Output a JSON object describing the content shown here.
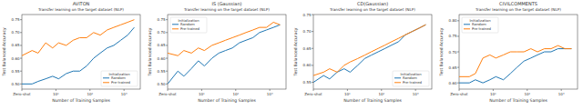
{
  "chart_data": [
    {
      "type": "line",
      "title": "AVITON",
      "subtitle": "Transfer learning on the target dataset (NLP)",
      "x_label": "Number of Training Samples",
      "y_label": "Test Balanced Accuracy",
      "legend_title": "Initialization",
      "log": "x",
      "grid": false,
      "legend": "lower right",
      "xlim": [
        1,
        3000
      ],
      "xticks": [
        {
          "value": 1,
          "label": "Zero-shot"
        },
        {
          "value": 10,
          "label": "10¹"
        },
        {
          "value": 100,
          "label": "10²"
        },
        {
          "value": 1000,
          "label": "10³"
        }
      ],
      "ylim": [
        0.48,
        0.77
      ],
      "yticks": [
        {
          "value": 0.5,
          "label": "0.50"
        },
        0.55,
        {
          "value": 0.6,
          "label": "0.60"
        },
        0.65,
        {
          "value": 0.7,
          "label": "0.70"
        },
        0.75
      ],
      "x": [
        1,
        2,
        3,
        5,
        8,
        12,
        20,
        32,
        50,
        80,
        128,
        200,
        320,
        500,
        800,
        1280,
        2000
      ],
      "series": [
        {
          "name": "Random",
          "color": "#1f77b4",
          "values": [
            0.5,
            0.5,
            0.51,
            0.52,
            0.53,
            0.52,
            0.54,
            0.55,
            0.55,
            0.57,
            0.6,
            0.62,
            0.64,
            0.65,
            0.67,
            0.69,
            0.72
          ]
        },
        {
          "name": "Pre-trained",
          "color": "#ff7f0e",
          "values": [
            0.61,
            0.63,
            0.62,
            0.66,
            0.64,
            0.66,
            0.65,
            0.67,
            0.68,
            0.68,
            0.7,
            0.69,
            0.71,
            0.72,
            0.73,
            0.74,
            0.75
          ]
        }
      ]
    },
    {
      "type": "line",
      "title": "IS (Gaussian)",
      "subtitle": "Transfer learning on the target dataset (NLP)",
      "x_label": "Number of Training Samples",
      "y_label": "Test Balanced Accuracy",
      "legend_title": "Initialization",
      "log": "x",
      "grid": false,
      "legend": "upper left",
      "xlim": [
        1,
        3000
      ],
      "xticks": [
        {
          "value": 1,
          "label": "Zero-shot"
        },
        {
          "value": 10,
          "label": "10¹"
        },
        {
          "value": 100,
          "label": "10²"
        },
        {
          "value": 1000,
          "label": "10³"
        }
      ],
      "ylim": [
        0.48,
        0.77
      ],
      "yticks": [
        {
          "value": 0.5,
          "label": "0.50"
        },
        0.55,
        {
          "value": 0.6,
          "label": "0.60"
        },
        0.65,
        {
          "value": 0.7,
          "label": "0.70"
        },
        0.75
      ],
      "x": [
        1,
        2,
        3,
        5,
        8,
        12,
        20,
        32,
        50,
        80,
        128,
        200,
        320,
        500,
        800,
        1280,
        2000
      ],
      "series": [
        {
          "name": "Random",
          "color": "#1f77b4",
          "values": [
            0.5,
            0.55,
            0.53,
            0.56,
            0.59,
            0.57,
            0.6,
            0.62,
            0.63,
            0.64,
            0.66,
            0.67,
            0.68,
            0.7,
            0.71,
            0.72,
            0.73
          ]
        },
        {
          "name": "Pre-trained",
          "color": "#ff7f0e",
          "values": [
            0.62,
            0.61,
            0.63,
            0.62,
            0.64,
            0.63,
            0.65,
            0.66,
            0.67,
            0.68,
            0.69,
            0.7,
            0.71,
            0.72,
            0.72,
            0.74,
            0.73
          ]
        }
      ]
    },
    {
      "type": "line",
      "title": "CD(Gaussian)",
      "subtitle": "Transfer learning on the target dataset (NLP)",
      "x_label": "Number of Training Samples",
      "y_label": "Test Balanced Accuracy",
      "legend_title": "Initialization",
      "log": "x",
      "grid": false,
      "legend": "lower right",
      "xlim": [
        1,
        3000
      ],
      "xticks": [
        {
          "value": 1,
          "label": "Zero-shot"
        },
        {
          "value": 10,
          "label": "10¹"
        },
        {
          "value": 100,
          "label": "10²"
        },
        {
          "value": 1000,
          "label": "10³"
        }
      ],
      "ylim": [
        0.53,
        0.75
      ],
      "yticks": [
        0.55,
        {
          "value": 0.6,
          "label": "0.60"
        },
        0.65,
        {
          "value": 0.7,
          "label": "0.70"
        },
        0.75
      ],
      "x": [
        1,
        2,
        3,
        5,
        8,
        12,
        20,
        32,
        50,
        80,
        128,
        200,
        320,
        500,
        800,
        1280,
        2000
      ],
      "series": [
        {
          "name": "Random",
          "color": "#1f77b4",
          "values": [
            0.55,
            0.57,
            0.56,
            0.58,
            0.59,
            0.58,
            0.6,
            0.62,
            0.63,
            0.64,
            0.65,
            0.66,
            0.67,
            0.69,
            0.7,
            0.71,
            0.72
          ]
        },
        {
          "name": "Pre-trained",
          "color": "#ff7f0e",
          "values": [
            0.57,
            0.58,
            0.59,
            0.58,
            0.6,
            0.61,
            0.62,
            0.63,
            0.64,
            0.65,
            0.66,
            0.67,
            0.68,
            0.69,
            0.7,
            0.71,
            0.72
          ]
        }
      ]
    },
    {
      "type": "line",
      "title": "CIVILCOMMENTS",
      "subtitle": "Transfer learning on the target dataset (NLP)",
      "x_label": "Number of Training Samples",
      "y_label": "Test Balanced Accuracy",
      "legend_title": "Initialization",
      "log": "x",
      "grid": false,
      "legend": "upper left",
      "xlim": [
        1,
        3000
      ],
      "xticks": [
        {
          "value": 1,
          "label": "Zero-shot"
        },
        {
          "value": 10,
          "label": "10¹"
        },
        {
          "value": 100,
          "label": "10²"
        },
        {
          "value": 1000,
          "label": "10³"
        }
      ],
      "ylim": [
        0.58,
        0.82
      ],
      "yticks": [
        {
          "value": 0.6,
          "label": "0.60"
        },
        0.65,
        {
          "value": 0.7,
          "label": "0.70"
        },
        0.75,
        {
          "value": 0.8,
          "label": "0.80"
        }
      ],
      "x": [
        1,
        2,
        3,
        5,
        8,
        12,
        20,
        32,
        50,
        80,
        128,
        200,
        320,
        500,
        800,
        1280,
        2000
      ],
      "series": [
        {
          "name": "Random",
          "color": "#1f77b4",
          "values": [
            0.6,
            0.6,
            0.61,
            0.6,
            0.61,
            0.62,
            0.61,
            0.63,
            0.65,
            0.67,
            0.68,
            0.69,
            0.7,
            0.7,
            0.71,
            0.71,
            0.71
          ]
        },
        {
          "name": "Pre-trained",
          "color": "#ff7f0e",
          "values": [
            0.62,
            0.62,
            0.63,
            0.68,
            0.69,
            0.68,
            0.69,
            0.7,
            0.7,
            0.7,
            0.71,
            0.7,
            0.71,
            0.71,
            0.72,
            0.71,
            0.71
          ]
        }
      ]
    }
  ]
}
